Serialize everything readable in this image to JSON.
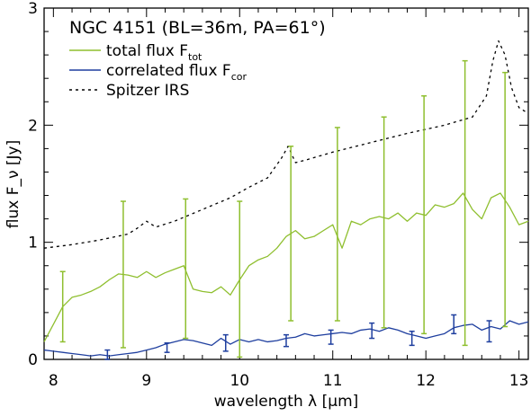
{
  "chart_data": {
    "type": "line",
    "title": "NGC 4151 (BL=36m, PA=61°)",
    "xlabel": "wavelength λ [μm]",
    "ylabel": "flux F_ν [Jy]",
    "xlim": [
      7.9,
      13.1
    ],
    "ylim": [
      0,
      3
    ],
    "xticks": [
      8,
      9,
      10,
      11,
      12,
      13
    ],
    "yticks": [
      0,
      1,
      2,
      3
    ],
    "legend_position": "top-left",
    "colors": {
      "total": "#8fbf2f",
      "correlated": "#1f3f9f",
      "spitzer": "#000000"
    },
    "legend": [
      {
        "key": "total",
        "label": "total flux F",
        "sub": "tot",
        "style": "solid"
      },
      {
        "key": "correlated",
        "label": "correlated flux F",
        "sub": "cor",
        "style": "solid"
      },
      {
        "key": "spitzer",
        "label": "Spitzer IRS",
        "sub": "",
        "style": "dashed"
      }
    ],
    "series": [
      {
        "key": "spitzer",
        "x": [
          7.9,
          8.2,
          8.5,
          8.8,
          8.9,
          9.0,
          9.1,
          9.3,
          9.6,
          9.9,
          10.1,
          10.3,
          10.45,
          10.52,
          10.6,
          10.7,
          11.0,
          11.4,
          11.8,
          12.2,
          12.5,
          12.65,
          12.72,
          12.78,
          12.85,
          12.92,
          13.0,
          13.1
        ],
        "y": [
          0.95,
          0.98,
          1.02,
          1.07,
          1.12,
          1.18,
          1.13,
          1.18,
          1.28,
          1.38,
          1.47,
          1.55,
          1.72,
          1.82,
          1.68,
          1.7,
          1.77,
          1.85,
          1.93,
          2.0,
          2.07,
          2.25,
          2.55,
          2.72,
          2.6,
          2.32,
          2.15,
          2.1
        ]
      },
      {
        "key": "total",
        "x": [
          7.9,
          8.0,
          8.1,
          8.2,
          8.3,
          8.4,
          8.5,
          8.6,
          8.7,
          8.8,
          8.9,
          9.0,
          9.1,
          9.2,
          9.3,
          9.4,
          9.5,
          9.6,
          9.7,
          9.8,
          9.9,
          10.0,
          10.1,
          10.2,
          10.3,
          10.4,
          10.5,
          10.6,
          10.7,
          10.8,
          10.9,
          11.0,
          11.1,
          11.2,
          11.3,
          11.4,
          11.5,
          11.6,
          11.7,
          11.8,
          11.9,
          12.0,
          12.1,
          12.2,
          12.3,
          12.4,
          12.5,
          12.6,
          12.7,
          12.8,
          12.9,
          13.0,
          13.1
        ],
        "y": [
          0.15,
          0.3,
          0.45,
          0.53,
          0.55,
          0.58,
          0.62,
          0.68,
          0.73,
          0.72,
          0.7,
          0.75,
          0.7,
          0.74,
          0.77,
          0.8,
          0.6,
          0.58,
          0.57,
          0.62,
          0.55,
          0.68,
          0.8,
          0.85,
          0.88,
          0.95,
          1.05,
          1.1,
          1.03,
          1.05,
          1.1,
          1.15,
          0.95,
          1.18,
          1.15,
          1.2,
          1.22,
          1.2,
          1.25,
          1.18,
          1.25,
          1.23,
          1.32,
          1.3,
          1.33,
          1.42,
          1.28,
          1.2,
          1.38,
          1.42,
          1.3,
          1.15,
          1.18
        ]
      },
      {
        "key": "correlated",
        "x": [
          7.9,
          8.0,
          8.1,
          8.2,
          8.3,
          8.4,
          8.5,
          8.6,
          8.7,
          8.8,
          8.9,
          9.0,
          9.1,
          9.2,
          9.3,
          9.4,
          9.5,
          9.6,
          9.7,
          9.8,
          9.9,
          10.0,
          10.1,
          10.2,
          10.3,
          10.4,
          10.5,
          10.6,
          10.7,
          10.8,
          10.9,
          11.0,
          11.1,
          11.2,
          11.3,
          11.4,
          11.5,
          11.6,
          11.7,
          11.8,
          11.9,
          12.0,
          12.1,
          12.2,
          12.3,
          12.4,
          12.5,
          12.6,
          12.7,
          12.8,
          12.9,
          13.0,
          13.1
        ],
        "y": [
          0.08,
          0.07,
          0.06,
          0.05,
          0.04,
          0.03,
          0.04,
          0.03,
          0.04,
          0.05,
          0.06,
          0.08,
          0.1,
          0.13,
          0.15,
          0.17,
          0.16,
          0.14,
          0.12,
          0.18,
          0.13,
          0.17,
          0.15,
          0.17,
          0.15,
          0.16,
          0.18,
          0.19,
          0.22,
          0.2,
          0.21,
          0.22,
          0.23,
          0.22,
          0.25,
          0.26,
          0.24,
          0.27,
          0.25,
          0.22,
          0.2,
          0.18,
          0.2,
          0.22,
          0.27,
          0.29,
          0.3,
          0.25,
          0.28,
          0.26,
          0.33,
          0.3,
          0.32
        ]
      }
    ],
    "error_bars": [
      {
        "key": "total",
        "points": [
          {
            "x": 8.1,
            "y": 0.45,
            "lo": 0.15,
            "hi": 0.75
          },
          {
            "x": 8.75,
            "y": 0.72,
            "lo": 0.1,
            "hi": 1.35
          },
          {
            "x": 9.42,
            "y": 0.78,
            "lo": 0.18,
            "hi": 1.37
          },
          {
            "x": 10.0,
            "y": 0.68,
            "lo": 0.02,
            "hi": 1.35
          },
          {
            "x": 10.55,
            "y": 1.08,
            "lo": 0.33,
            "hi": 1.82
          },
          {
            "x": 11.05,
            "y": 1.15,
            "lo": 0.33,
            "hi": 1.98
          },
          {
            "x": 11.55,
            "y": 1.18,
            "lo": 0.27,
            "hi": 2.07
          },
          {
            "x": 11.98,
            "y": 1.23,
            "lo": 0.22,
            "hi": 2.25
          },
          {
            "x": 12.42,
            "y": 1.35,
            "lo": 0.12,
            "hi": 2.55
          },
          {
            "x": 12.85,
            "y": 1.38,
            "lo": 0.28,
            "hi": 2.45
          }
        ]
      },
      {
        "key": "correlated",
        "points": [
          {
            "x": 8.58,
            "y": 0.04,
            "lo": 0.0,
            "hi": 0.08
          },
          {
            "x": 9.22,
            "y": 0.1,
            "lo": 0.06,
            "hi": 0.14
          },
          {
            "x": 9.85,
            "y": 0.14,
            "lo": 0.07,
            "hi": 0.21
          },
          {
            "x": 10.5,
            "y": 0.16,
            "lo": 0.11,
            "hi": 0.21
          },
          {
            "x": 10.98,
            "y": 0.19,
            "lo": 0.13,
            "hi": 0.25
          },
          {
            "x": 11.42,
            "y": 0.25,
            "lo": 0.18,
            "hi": 0.31
          },
          {
            "x": 11.85,
            "y": 0.18,
            "lo": 0.12,
            "hi": 0.24
          },
          {
            "x": 12.3,
            "y": 0.3,
            "lo": 0.22,
            "hi": 0.38
          },
          {
            "x": 12.68,
            "y": 0.24,
            "lo": 0.15,
            "hi": 0.33
          }
        ]
      }
    ]
  }
}
